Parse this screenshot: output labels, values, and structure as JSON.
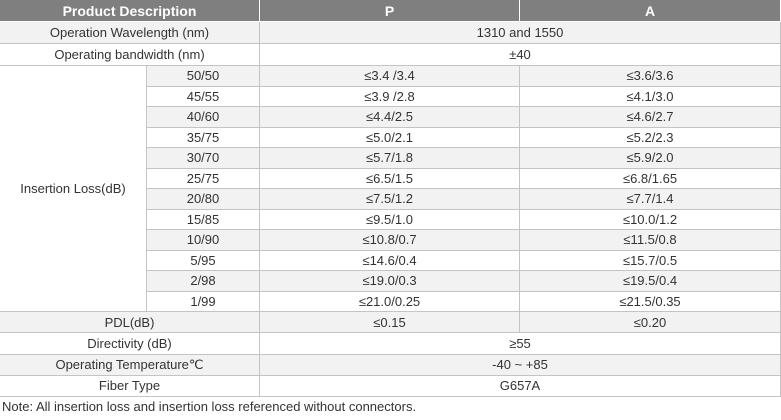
{
  "table": {
    "header": [
      "Product Description",
      "P",
      "A"
    ],
    "top_rows": [
      {
        "label": "Operation Wavelength (nm)",
        "values": [
          "1310 and 1550"
        ]
      },
      {
        "label": "Operating bandwidth (nm)",
        "values": [
          "±40"
        ]
      }
    ],
    "insertion_loss": {
      "label": "Insertion Loss(dB)",
      "ratios": [
        "50/50",
        "45/55",
        "40/60",
        "35/75",
        "30/70",
        "25/75",
        "20/80",
        "15/85",
        "10/90",
        "5/95",
        "2/98",
        "1/99"
      ],
      "p": [
        "≤3.4 /3.4",
        "≤3.9 /2.8",
        "≤4.4/2.5",
        "≤5.0/2.1",
        "≤5.7/1.8",
        "≤6.5/1.5",
        "≤7.5/1.2",
        "≤9.5/1.0",
        "≤10.8/0.7",
        "≤14.6/0.4",
        "≤19.0/0.3",
        "≤21.0/0.25"
      ],
      "a": [
        "≤3.6/3.6",
        "≤4.1/3.0",
        "≤4.6/2.7",
        "≤5.2/2.3",
        "≤5.9/2.0",
        "≤6.8/1.65",
        "≤7.7/1.4",
        "≤10.0/1.2",
        "≤11.5/0.8",
        "≤15.7/0.5",
        "≤19.5/0.4",
        "≤21.5/0.35"
      ]
    },
    "bottom_rows": [
      {
        "label": "PDL(dB)",
        "values": [
          "≤0.15",
          "≤0.20"
        ]
      },
      {
        "label": "Directivity (dB)",
        "values": [
          "≥55"
        ]
      },
      {
        "label": "Operating Temperature℃",
        "values": [
          "-40 ~ +85"
        ]
      },
      {
        "label": "Fiber Type",
        "values": [
          "G657A"
        ]
      }
    ]
  },
  "note": "Note: All insertion loss and insertion loss referenced without connectors."
}
